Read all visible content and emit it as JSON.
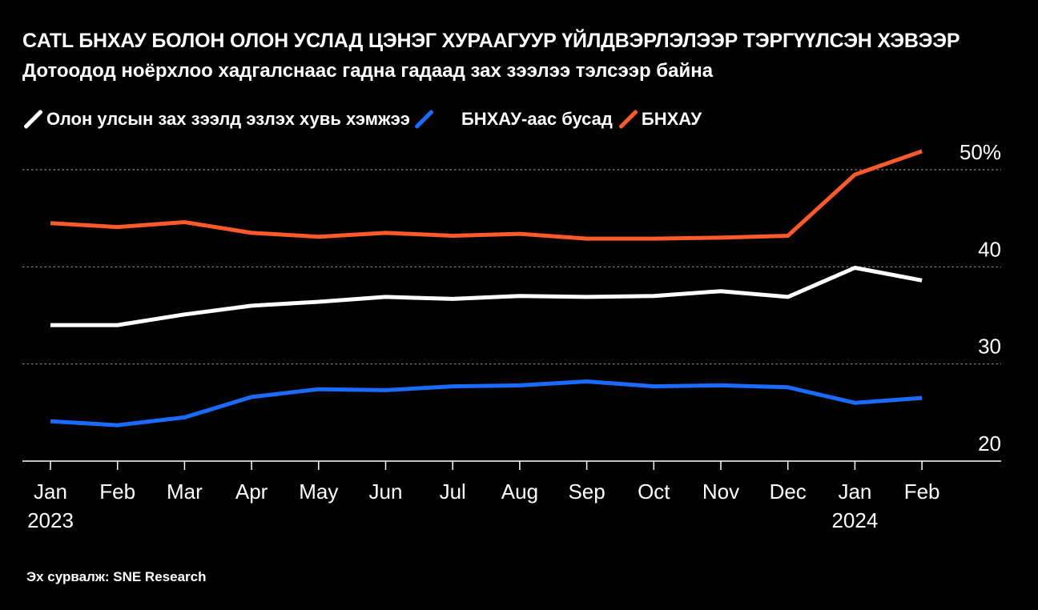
{
  "header": {
    "title": "CATL БНХАУ БОЛОН ОЛОН УСЛАД ЦЭНЭГ ХУРААГУУР ҮЙЛДВЭРЛЭЛЭЭР ТЭРГҮҮЛСЭН ХЭВЭЭР",
    "subtitle": "Дотоодод ноёрхлоо хадгалснаас гадна гадаад зах зээлээ тэлсээр байна"
  },
  "legend": [
    {
      "label": "Олон улсын зах зээлд эзлэх хувь хэмжээ",
      "color": "#ffffff",
      "icon": "diagonal-line-icon"
    },
    {
      "label": "БНХАУ-аас бусад",
      "color": "#1a6bff",
      "icon": "diagonal-line-icon"
    },
    {
      "label": "БНХАУ",
      "color": "#ff5a2a",
      "icon": "diagonal-line-icon"
    }
  ],
  "source": "Эх сурвалж: SNE Research",
  "chart_data": {
    "type": "line",
    "categories": [
      "Jan",
      "Feb",
      "Mar",
      "Apr",
      "May",
      "Jun",
      "Jul",
      "Aug",
      "Sep",
      "Oct",
      "Nov",
      "Dec",
      "Jan",
      "Feb"
    ],
    "year_labels": [
      {
        "index": 0,
        "label": "2023"
      },
      {
        "index": 12,
        "label": "2024"
      }
    ],
    "ylim": [
      20,
      50
    ],
    "y_ticks": [
      20,
      30,
      40,
      50
    ],
    "y_tick_labels": [
      "20",
      "30",
      "40",
      "50%"
    ],
    "grid": "horizontal-dotted",
    "legend_position": "top-left",
    "series": [
      {
        "name": "Олон улсын зах зээлд эзлэх хувь хэмжээ",
        "color": "#ffffff",
        "values": [
          34.0,
          34.0,
          35.1,
          36.0,
          36.4,
          36.9,
          36.7,
          37.0,
          36.9,
          37.0,
          37.5,
          36.9,
          39.9,
          38.6
        ]
      },
      {
        "name": "БНХАУ-аас бусад",
        "color": "#1a6bff",
        "values": [
          24.1,
          23.7,
          24.5,
          26.6,
          27.4,
          27.3,
          27.7,
          27.8,
          28.2,
          27.7,
          27.8,
          27.6,
          26.0,
          26.5
        ]
      },
      {
        "name": "БНХАУ",
        "color": "#ff5a2a",
        "values": [
          44.5,
          44.1,
          44.6,
          43.5,
          43.1,
          43.5,
          43.2,
          43.4,
          42.9,
          42.9,
          43.0,
          43.2,
          49.5,
          51.9
        ]
      }
    ]
  }
}
